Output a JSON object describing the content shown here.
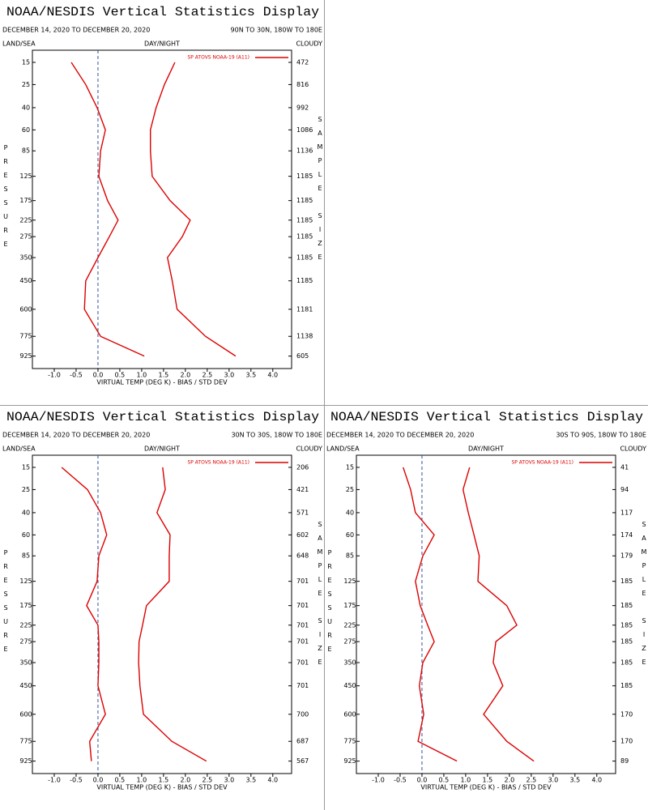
{
  "chart_data": [
    {
      "type": "line",
      "title": "NOAA/NESDIS Vertical Statistics Display",
      "date_range": "DECEMBER 14, 2020 TO DECEMBER 20, 2020",
      "region": "90N TO 30N, 180W TO 180E",
      "land_sea": "LAND/SEA",
      "day_night": "DAY/NIGHT",
      "cloudy": "CLOUDY",
      "y_label": "PRESSURE",
      "y2_label": "SAMPLE SIZE",
      "x_label": "VIRTUAL TEMP (DEG K) - BIAS / STD DEV",
      "categories": [
        15,
        25,
        40,
        60,
        85,
        125,
        175,
        225,
        275,
        350,
        450,
        600,
        775,
        925
      ],
      "sample_size": [
        472,
        816,
        992,
        1086,
        1136,
        1185,
        1185,
        1185,
        1185,
        1185,
        1185,
        1181,
        1138,
        605
      ],
      "series": [
        {
          "name": "SP ATOVS NOAA-19 (A11)",
          "color": "#dd0000",
          "values": [
            -0.61,
            -0.28,
            -0.02,
            0.17,
            0.06,
            0.02,
            0.22,
            0.46,
            0.26,
            0.0,
            -0.28,
            -0.31,
            0.06,
            1.06
          ],
          "std_dev": [
            1.76,
            1.52,
            1.33,
            1.2,
            1.2,
            1.24,
            1.65,
            2.11,
            1.93,
            1.59,
            1.7,
            1.81,
            2.46,
            3.15
          ]
        }
      ],
      "xlim": [
        -1.5,
        4.43
      ],
      "xticks": [
        {
          "value": -1,
          "label": "-1.0"
        },
        -0.5,
        {
          "value": 0,
          "label": "0.0"
        },
        0.5,
        {
          "value": 1,
          "label": "1.0"
        },
        1.5,
        {
          "value": 2,
          "label": "2.0"
        },
        2.5,
        {
          "value": 3,
          "label": "3.0"
        },
        3.5,
        {
          "value": 4,
          "label": "4.0"
        }
      ],
      "ylim": [
        11,
        1030
      ],
      "legend": "upper right"
    },
    {
      "type": "line",
      "title": "NOAA/NESDIS Vertical Statistics Display",
      "date_range": "DECEMBER 14, 2020 TO DECEMBER 20, 2020",
      "region": "30N TO 30S, 180W TO 180E",
      "land_sea": "LAND/SEA",
      "day_night": "DAY/NIGHT",
      "cloudy": "CLOUDY",
      "y_label": "PRESSURE",
      "y2_label": "SAMPLE SIZE",
      "x_label": "VIRTUAL TEMP (DEG K) - BIAS / STD DEV",
      "categories": [
        15,
        25,
        40,
        60,
        85,
        125,
        175,
        225,
        275,
        350,
        450,
        600,
        775,
        925
      ],
      "sample_size": [
        206,
        421,
        571,
        602,
        648,
        701,
        701,
        701,
        701,
        701,
        701,
        700,
        687,
        567
      ],
      "series": [
        {
          "name": "SP ATOVS NOAA-19 (A11)",
          "color": "#dd0000",
          "values": [
            -0.83,
            -0.24,
            0.06,
            0.2,
            0.02,
            -0.02,
            -0.26,
            0.0,
            0.02,
            0.02,
            0.0,
            0.17,
            -0.19,
            -0.15
          ],
          "std_dev": [
            1.48,
            1.54,
            1.35,
            1.65,
            1.63,
            1.63,
            1.11,
            1.02,
            0.94,
            0.93,
            0.96,
            1.04,
            1.69,
            2.48
          ]
        }
      ],
      "xlim": [
        -1.5,
        4.43
      ],
      "xticks": [
        {
          "value": -1,
          "label": "-1.0"
        },
        -0.5,
        {
          "value": 0,
          "label": "0.0"
        },
        0.5,
        {
          "value": 1,
          "label": "1.0"
        },
        1.5,
        {
          "value": 2,
          "label": "2.0"
        },
        2.5,
        {
          "value": 3,
          "label": "3.0"
        },
        3.5,
        {
          "value": 4,
          "label": "4.0"
        }
      ],
      "ylim": [
        11,
        1030
      ],
      "legend": "upper right"
    },
    {
      "type": "line",
      "title": "NOAA/NESDIS Vertical Statistics Display",
      "date_range": "DECEMBER 14, 2020 TO DECEMBER 20, 2020",
      "region": "30S TO 90S, 180W TO 180E",
      "land_sea": "LAND/SEA",
      "day_night": "DAY/NIGHT",
      "cloudy": "CLOUDY",
      "y_label": "PRESSURE",
      "y2_label": "SAMPLE SIZE",
      "x_label": "VIRTUAL TEMP (DEG K) - BIAS / STD DEV",
      "categories": [
        15,
        25,
        40,
        60,
        85,
        125,
        175,
        225,
        275,
        350,
        450,
        600,
        775,
        925
      ],
      "sample_size": [
        41,
        94,
        117,
        174,
        179,
        185,
        185,
        185,
        185,
        185,
        185,
        170,
        170,
        89
      ],
      "series": [
        {
          "name": "SP ATOVS NOAA-19 (A11)",
          "color": "#dd0000",
          "values": [
            -0.43,
            -0.26,
            -0.15,
            0.28,
            0.02,
            -0.15,
            -0.04,
            0.13,
            0.28,
            0.02,
            -0.06,
            0.04,
            -0.09,
            0.8
          ],
          "std_dev": [
            1.09,
            0.94,
            1.06,
            1.19,
            1.31,
            1.28,
            1.94,
            2.17,
            1.69,
            1.63,
            1.85,
            1.41,
            1.94,
            2.56
          ]
        }
      ],
      "xlim": [
        -1.5,
        4.43
      ],
      "xticks": [
        {
          "value": -1,
          "label": "-1.0"
        },
        -0.5,
        {
          "value": 0,
          "label": "0.0"
        },
        0.5,
        {
          "value": 1,
          "label": "1.0"
        },
        1.5,
        {
          "value": 2,
          "label": "2.0"
        },
        2.5,
        {
          "value": 3,
          "label": "3.0"
        },
        3.5,
        {
          "value": 4,
          "label": "4.0"
        }
      ],
      "ylim": [
        11,
        1030
      ],
      "legend": "upper right"
    }
  ]
}
